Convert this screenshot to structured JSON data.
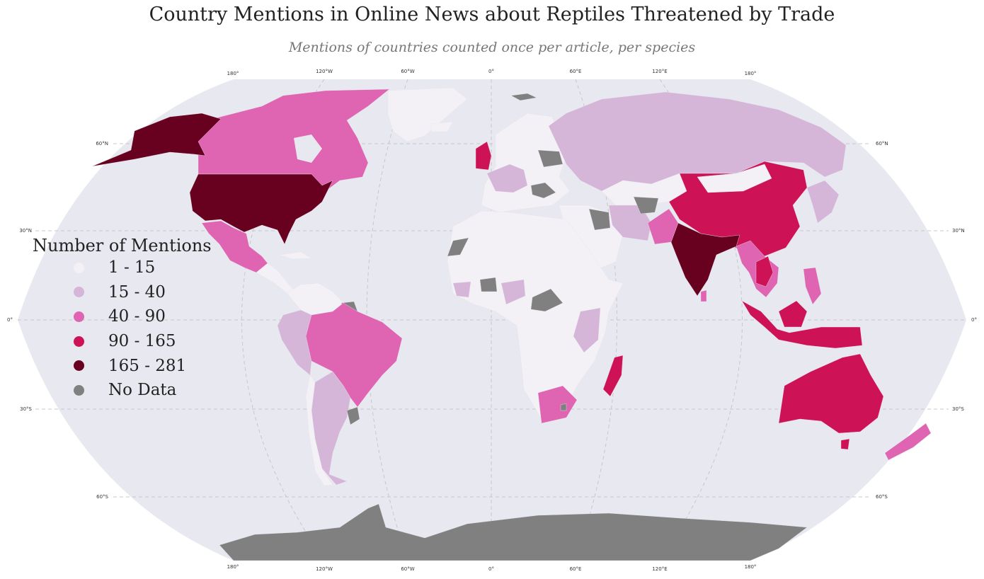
{
  "title": "Country Mentions in Online News about Reptiles Threatened by Trade",
  "subtitle": "Mentions of countries counted once per article, per species",
  "colors": {
    "ocean": "#e8e8f0",
    "c1": "#f4f1f6",
    "c2": "#d5b5d8",
    "c3": "#df64b1",
    "c4": "#cd1356",
    "c5": "#68001f",
    "nodata": "#808080",
    "grid": "#c8c8c8"
  },
  "graticule": {
    "lon_labels": [
      "180°",
      "120°W",
      "60°W",
      "0°",
      "60°E",
      "120°E",
      "180°"
    ],
    "lat_labels_left": [
      "60°N",
      "30°N",
      "0°",
      "30°S",
      "60°S"
    ],
    "lat_labels_right": [
      "60°N",
      "30°N",
      "0°",
      "30°S",
      "60°S"
    ]
  },
  "legend": {
    "title": "Number of Mentions",
    "items": [
      {
        "label": "1 - 15",
        "color": "#f4f1f6"
      },
      {
        "label": "15 - 40",
        "color": "#d5b5d8"
      },
      {
        "label": "40 - 90",
        "color": "#df64b1"
      },
      {
        "label": "90 - 165",
        "color": "#cd1356"
      },
      {
        "label": "165 - 281",
        "color": "#68001f"
      },
      {
        "label": "No Data",
        "color": "#808080"
      }
    ]
  },
  "regions": [
    {
      "name": "United States",
      "cls": "c5"
    },
    {
      "name": "Alaska",
      "cls": "c5"
    },
    {
      "name": "Canada",
      "cls": "c3"
    },
    {
      "name": "Greenland",
      "cls": "c1"
    },
    {
      "name": "Mexico",
      "cls": "c3"
    },
    {
      "name": "Central America",
      "cls": "c1"
    },
    {
      "name": "Brazil",
      "cls": "c3"
    },
    {
      "name": "Argentina",
      "cls": "c2"
    },
    {
      "name": "Peru",
      "cls": "c2"
    },
    {
      "name": "Chile",
      "cls": "c1"
    },
    {
      "name": "Uruguay",
      "cls": "nodata"
    },
    {
      "name": "United Kingdom",
      "cls": "c4"
    },
    {
      "name": "Europe",
      "cls": "c1"
    },
    {
      "name": "Russia",
      "cls": "c2"
    },
    {
      "name": "China",
      "cls": "c4"
    },
    {
      "name": "India",
      "cls": "c5"
    },
    {
      "name": "Pakistan",
      "cls": "c3"
    },
    {
      "name": "Southeast Asia",
      "cls": "c3"
    },
    {
      "name": "Indonesia",
      "cls": "c4"
    },
    {
      "name": "Australia",
      "cls": "c4"
    },
    {
      "name": "New Zealand",
      "cls": "c3"
    },
    {
      "name": "Madagascar",
      "cls": "c4"
    },
    {
      "name": "South Africa",
      "cls": "c3"
    },
    {
      "name": "Africa",
      "cls": "c1"
    },
    {
      "name": "Antarctica",
      "cls": "nodata"
    }
  ]
}
